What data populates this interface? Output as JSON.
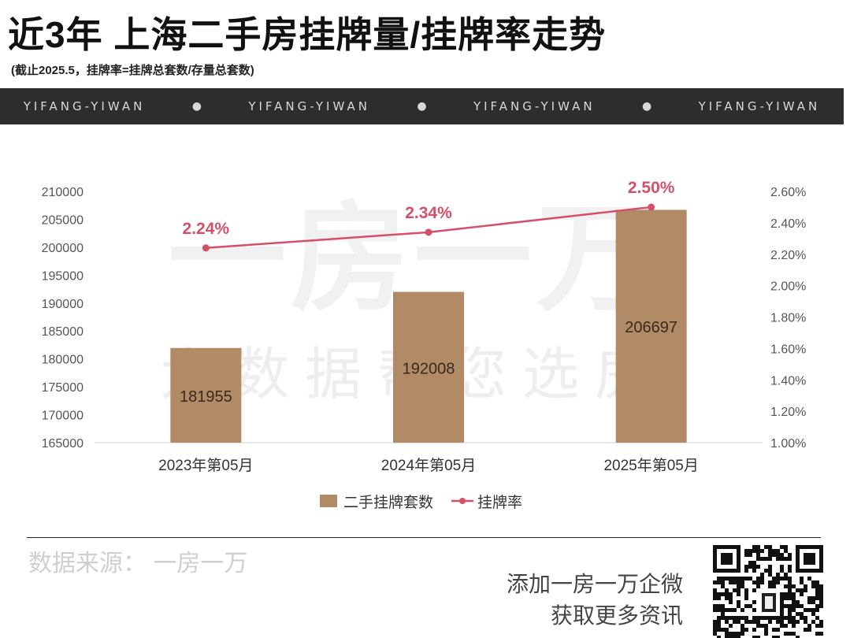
{
  "header": {
    "title": "近3年 上海二手房挂牌量/挂牌率走势",
    "subtitle": "(截止2025.5，挂牌率=挂牌总套数/存量总套数)"
  },
  "banner": {
    "items": [
      "YIFANG-YIWAN",
      "YIFANG-YIWAN",
      "YIFANG-YIWAN",
      "YIFANG-YIWAN"
    ]
  },
  "watermark": {
    "big": "一房一万",
    "sub": "大数据帮您选房"
  },
  "chart_data": {
    "type": "bar",
    "categories": [
      "2023年第05月",
      "2024年第05月",
      "2025年第05月"
    ],
    "series": [
      {
        "name": "二手挂牌套数",
        "type": "bar",
        "axis": "left",
        "values": [
          181955,
          192008,
          206697
        ],
        "labels": [
          "181955",
          "192008",
          "206697"
        ],
        "color": "#b18a66"
      },
      {
        "name": "挂牌率",
        "type": "line",
        "axis": "right",
        "values": [
          2.24,
          2.34,
          2.5
        ],
        "labels": [
          "2.24%",
          "2.34%",
          "2.50%"
        ],
        "color": "#d4506a"
      }
    ],
    "y_left": {
      "min": 165000,
      "max": 210000,
      "ticks": [
        "165000",
        "170000",
        "175000",
        "180000",
        "185000",
        "190000",
        "195000",
        "200000",
        "205000",
        "210000"
      ]
    },
    "y_right": {
      "min": 1.0,
      "max": 2.6,
      "ticks": [
        "1.00%",
        "1.20%",
        "1.40%",
        "1.60%",
        "1.80%",
        "2.00%",
        "2.20%",
        "2.40%",
        "2.60%"
      ]
    },
    "grid": false,
    "legend": "bottom-center"
  },
  "footer": {
    "source": "数据来源：  一房一万",
    "promo_line1": "添加一房一万企微",
    "promo_line2": "获取更多资讯"
  }
}
